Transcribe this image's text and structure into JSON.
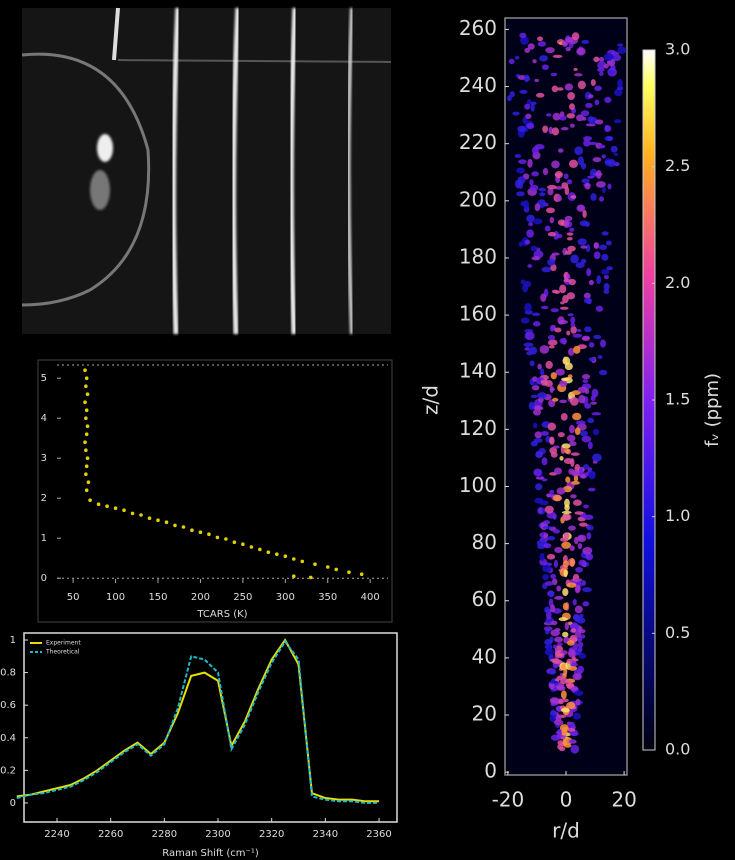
{
  "chart_data": [
    {
      "type": "scatter",
      "x_label": "TCARS (K)",
      "color": "#e0d000",
      "xlim": [
        31,
        421
      ],
      "ylim": [
        -0.12,
        5.33
      ],
      "xticks": [
        50,
        100,
        150,
        200,
        250,
        300,
        350,
        400
      ],
      "yticks": [
        0,
        1,
        2,
        3,
        4,
        5
      ],
      "series": [
        {
          "x": [
            64,
            66,
            65,
            67,
            64,
            66,
            65,
            67,
            66,
            64,
            65,
            67,
            66,
            65,
            68,
            66,
            70,
            80,
            90,
            100,
            110,
            120,
            130,
            140,
            150,
            160,
            170,
            180,
            190,
            200,
            210,
            220,
            230,
            240,
            250,
            260,
            270,
            280,
            290,
            300,
            310,
            320,
            335,
            350,
            360,
            375,
            390,
            310,
            330
          ],
          "y": [
            5.2,
            5.0,
            4.8,
            4.6,
            4.4,
            4.2,
            4.0,
            3.8,
            3.6,
            3.4,
            3.2,
            3.0,
            2.8,
            2.6,
            2.4,
            2.2,
            1.95,
            1.85,
            1.8,
            1.75,
            1.7,
            1.62,
            1.58,
            1.5,
            1.45,
            1.4,
            1.32,
            1.28,
            1.2,
            1.15,
            1.1,
            1.02,
            0.98,
            0.9,
            0.85,
            0.78,
            0.72,
            0.65,
            0.6,
            0.55,
            0.48,
            0.42,
            0.35,
            0.28,
            0.22,
            0.15,
            0.1,
            0.05,
            0.02
          ]
        }
      ]
    },
    {
      "type": "line",
      "x_label": "Raman Shift (cm⁻¹)",
      "xlim": [
        2227.7,
        2366.7
      ],
      "ylim": [
        -0.117,
        1.043
      ],
      "xticks": [
        2240,
        2260,
        2280,
        2300,
        2320,
        2340,
        2360
      ],
      "yticks": [
        0,
        0.2,
        0.4,
        0.6,
        0.8,
        1
      ],
      "x": [
        2225,
        2230,
        2235,
        2240,
        2245,
        2250,
        2255,
        2260,
        2265,
        2270,
        2275,
        2280,
        2285,
        2290,
        2295,
        2300,
        2305,
        2310,
        2315,
        2320,
        2325,
        2330,
        2335,
        2340,
        2345,
        2350,
        2355,
        2360
      ],
      "series": [
        {
          "name": "Experiment",
          "color": "#e6e000",
          "values": [
            0.04,
            0.05,
            0.07,
            0.09,
            0.11,
            0.15,
            0.2,
            0.26,
            0.32,
            0.37,
            0.3,
            0.37,
            0.55,
            0.78,
            0.8,
            0.75,
            0.35,
            0.5,
            0.7,
            0.88,
            1.0,
            0.85,
            0.06,
            0.03,
            0.02,
            0.02,
            0.01,
            0.01
          ]
        },
        {
          "name": "Theoretical",
          "color": "#20b8cc",
          "dashed": true,
          "values": [
            0.03,
            0.05,
            0.06,
            0.08,
            0.1,
            0.14,
            0.19,
            0.25,
            0.31,
            0.36,
            0.29,
            0.36,
            0.58,
            0.9,
            0.88,
            0.8,
            0.33,
            0.48,
            0.68,
            0.86,
            0.99,
            0.88,
            0.04,
            0.02,
            0.01,
            0.01,
            0.0,
            0.0
          ]
        }
      ],
      "legend": "upper left"
    },
    {
      "type": "heatmap",
      "x_label": "r/d",
      "y_label": "z/d",
      "colorbar_label": "fᵥ (ppm)",
      "xlim": [
        -21,
        21
      ],
      "ylim": [
        -1,
        264
      ],
      "xticks": [
        -20,
        0,
        20
      ],
      "yticks": [
        0,
        20,
        40,
        60,
        80,
        100,
        120,
        140,
        160,
        180,
        200,
        220,
        240,
        260
      ],
      "clim": [
        0,
        3
      ],
      "cticks": [
        {
          "value": 0,
          "label": "0.0"
        },
        0.5,
        {
          "value": 1,
          "label": "1.0"
        },
        1.5,
        {
          "value": 2,
          "label": "2.0"
        },
        2.5,
        {
          "value": 3,
          "label": "3.0"
        }
      ]
    }
  ]
}
